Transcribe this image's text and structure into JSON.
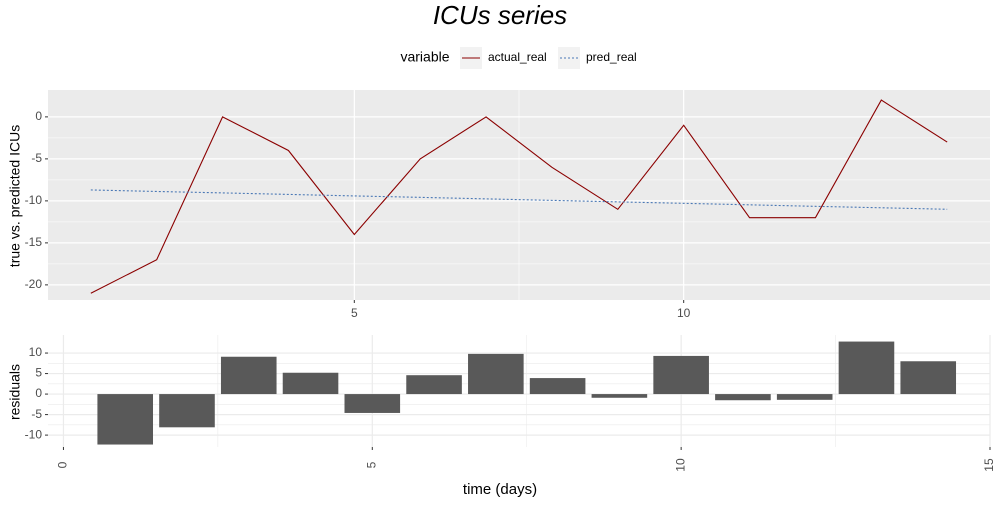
{
  "chart_data": [
    {
      "type": "line",
      "title": "ICUs series",
      "legend_title": "variable",
      "ylabel": "true vs. predicted ICUs",
      "x": [
        1,
        2,
        3,
        4,
        5,
        6,
        7,
        8,
        9,
        10,
        11,
        12,
        13,
        14
      ],
      "series": [
        {
          "name": "actual_real",
          "color": "#8b0000",
          "dash": false,
          "values": [
            -21,
            -17,
            0,
            -4,
            -14,
            -5,
            0,
            -6,
            -11,
            -1,
            -12,
            -12,
            2,
            -3
          ]
        },
        {
          "name": "pred_real",
          "color": "#4a78b5",
          "dash": true,
          "values": [
            -8.7,
            -8.88,
            -9.05,
            -9.23,
            -9.41,
            -9.58,
            -9.76,
            -9.94,
            -10.12,
            -10.29,
            -10.47,
            -10.65,
            -10.82,
            -11.0
          ]
        }
      ],
      "xlim": [
        0.35,
        14.65
      ],
      "xticks": [
        5,
        10
      ],
      "ylim": [
        -21.8,
        3.2
      ],
      "yticks": [
        -20,
        -15,
        -10,
        -5,
        0
      ],
      "grid": true,
      "panel_color": "#ebebeb",
      "grid_color": "#ffffff"
    },
    {
      "type": "bar",
      "ylabel": "residuals",
      "xlabel": "time (days)",
      "x": [
        1,
        2,
        3,
        4,
        5,
        6,
        7,
        8,
        9,
        10,
        11,
        12,
        13,
        14
      ],
      "values": [
        -12.3,
        -8.1,
        9.1,
        5.2,
        -4.6,
        4.6,
        9.8,
        3.9,
        -0.9,
        9.3,
        -1.5,
        -1.4,
        12.8,
        8.0
      ],
      "color": "#595959",
      "xlim": [
        -0.25,
        15
      ],
      "xticks": [
        0,
        5,
        10,
        15
      ],
      "ylim": [
        -12.9,
        14.4
      ],
      "yticks": [
        -10,
        -5,
        0,
        5,
        10
      ],
      "grid": true,
      "panel_color": "#ffffff",
      "grid_color": "#ebebeb"
    }
  ]
}
